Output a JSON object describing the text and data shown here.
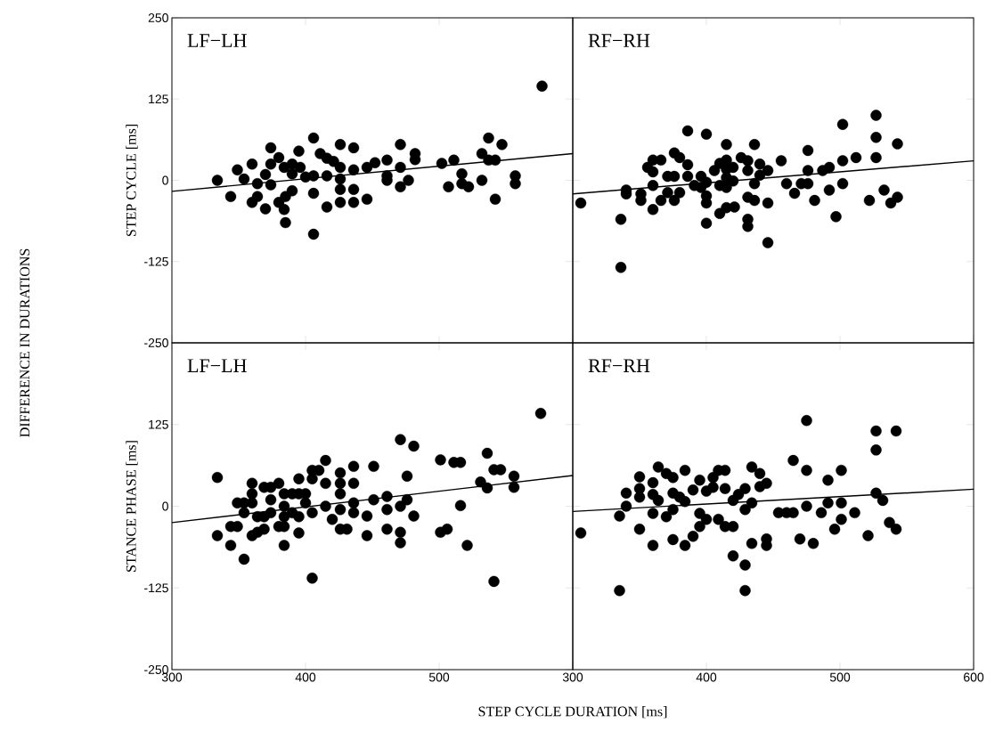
{
  "chart_data": [
    {
      "type": "scatter",
      "title": "LF−LH",
      "ylabel": "STEP CYCLE [ms]",
      "annotations": [
        "DIFFERENCE IN DURATIONS"
      ],
      "xlim": [
        300,
        600
      ],
      "ylim": [
        -250,
        250
      ],
      "xticks": [
        300,
        400,
        500,
        600
      ],
      "yticks": [
        -250,
        -125,
        0,
        125,
        250
      ],
      "tick_labels": "y",
      "series": [
        {
          "marker": "circle",
          "color": "#000000",
          "x": [
            334,
            577,
            344,
            349,
            360,
            360,
            354,
            364,
            364,
            370,
            370,
            374,
            380,
            374,
            374,
            380,
            384,
            385,
            385,
            384,
            390,
            390,
            390,
            395,
            396,
            400,
            406,
            406,
            406,
            406,
            411,
            416,
            416,
            416,
            421,
            426,
            426,
            426,
            426,
            426,
            436,
            436,
            436,
            436,
            446,
            446,
            452,
            461,
            461,
            461,
            471,
            471,
            471,
            477,
            482,
            482,
            502,
            507,
            511,
            517,
            517,
            522,
            532,
            532,
            537,
            537,
            542,
            542,
            547,
            557,
            557
          ],
          "values": [
            0,
            145,
            -25,
            16,
            25,
            -34,
            2,
            -5,
            -25,
            -44,
            9,
            50,
            35,
            25,
            -7,
            -34,
            -45,
            -65,
            -25,
            20,
            25,
            10,
            -16,
            45,
            20,
            5,
            65,
            -20,
            -83,
            7,
            41,
            34,
            7,
            -41,
            29,
            55,
            20,
            2,
            -14,
            -34,
            50,
            16,
            -14,
            -34,
            20,
            -29,
            27,
            31,
            7,
            0,
            55,
            20,
            -10,
            0,
            41,
            32,
            26,
            -10,
            31,
            10,
            -5,
            -10,
            41,
            0,
            65,
            31,
            31,
            -29,
            55,
            7,
            -5
          ]
        },
        {
          "type": "line",
          "marker": "none",
          "color": "#000000",
          "x": [
            300,
            600
          ],
          "values": [
            -17,
            41
          ]
        }
      ]
    },
    {
      "type": "scatter",
      "title": "RF−RH",
      "xlim": [
        300,
        600
      ],
      "ylim": [
        -250,
        250
      ],
      "xticks": [
        300,
        400,
        500,
        600
      ],
      "yticks": [
        -250,
        -125,
        0,
        125,
        250
      ],
      "tick_labels": false,
      "series": [
        {
          "marker": "circle",
          "color": "#000000",
          "x": [
            306,
            336,
            336,
            340,
            340,
            351,
            351,
            356,
            360,
            366,
            360,
            360,
            360,
            366,
            371,
            371,
            376,
            376,
            376,
            380,
            380,
            386,
            386,
            386,
            391,
            396,
            396,
            400,
            400,
            400,
            400,
            400,
            406,
            410,
            410,
            410,
            415,
            415,
            415,
            415,
            415,
            415,
            420,
            420,
            421,
            426,
            431,
            431,
            431,
            431,
            431,
            436,
            436,
            436,
            440,
            440,
            446,
            446,
            446,
            456,
            460,
            466,
            471,
            476,
            476,
            476,
            481,
            487,
            492,
            492,
            497,
            502,
            502,
            502,
            512,
            522,
            527,
            527,
            527,
            533,
            538,
            543,
            543
          ],
          "values": [
            -35,
            -60,
            -134,
            -15,
            -21,
            -21,
            -31,
            20,
            31,
            31,
            13,
            -8,
            -45,
            -31,
            6,
            -19,
            42,
            6,
            -31,
            35,
            -19,
            76,
            24,
            6,
            -8,
            6,
            -11,
            71,
            -3,
            -24,
            -35,
            -66,
            15,
            26,
            -8,
            -51,
            55,
            31,
            17,
            4,
            -11,
            -42,
            20,
            -1,
            -41,
            35,
            30,
            15,
            -26,
            -60,
            -71,
            55,
            -5,
            -31,
            25,
            8,
            15,
            -35,
            -96,
            30,
            -5,
            -20,
            -5,
            46,
            15,
            -5,
            -31,
            15,
            20,
            -15,
            -56,
            86,
            30,
            -5,
            35,
            -31,
            100,
            66,
            35,
            -15,
            -35,
            56,
            -26
          ]
        },
        {
          "type": "line",
          "marker": "none",
          "color": "#000000",
          "x": [
            300,
            600
          ],
          "values": [
            -21,
            30
          ]
        }
      ]
    },
    {
      "type": "scatter",
      "title": "LF−LH",
      "ylabel": "STANCE PHASE [ms]",
      "xlabel": "STEP CYCLE DURATION [ms]",
      "xlim": [
        300,
        600
      ],
      "ylim": [
        -250,
        250
      ],
      "xticks": [
        300,
        400,
        500,
        {
          "value": 600,
          "label": null
        }
      ],
      "yticks": [
        -250,
        -125,
        0,
        125,
        {
          "value": 250,
          "label": null
        }
      ],
      "series": [
        {
          "marker": "circle",
          "color": "#000000",
          "x": [
            334,
            334,
            344,
            344,
            349,
            349,
            354,
            354,
            354,
            360,
            360,
            360,
            360,
            364,
            364,
            369,
            369,
            369,
            374,
            374,
            374,
            380,
            380,
            384,
            384,
            384,
            384,
            384,
            390,
            390,
            395,
            395,
            395,
            395,
            400,
            400,
            405,
            405,
            405,
            405,
            410,
            415,
            415,
            415,
            420,
            426,
            426,
            426,
            426,
            426,
            431,
            436,
            436,
            436,
            436,
            446,
            446,
            451,
            451,
            461,
            461,
            461,
            471,
            471,
            471,
            471,
            476,
            476,
            481,
            481,
            501,
            501,
            506,
            511,
            516,
            516,
            521,
            531,
            536,
            536,
            541,
            541,
            546,
            556,
            556,
            576
          ],
          "values": [
            44,
            -45,
            -60,
            -31,
            -31,
            5,
            5,
            -10,
            -81,
            35,
            19,
            5,
            -45,
            -16,
            -40,
            29,
            -16,
            -35,
            29,
            10,
            -10,
            35,
            -31,
            19,
            0,
            -16,
            -31,
            -60,
            19,
            -10,
            42,
            19,
            -16,
            -41,
            19,
            5,
            55,
            42,
            -10,
            -110,
            55,
            70,
            35,
            0,
            -20,
            51,
            35,
            19,
            -5,
            -35,
            -35,
            61,
            35,
            5,
            -10,
            -15,
            -45,
            61,
            10,
            15,
            -5,
            -35,
            102,
            0,
            -40,
            -56,
            46,
            10,
            92,
            -15,
            71,
            -40,
            -35,
            67,
            67,
            1,
            -60,
            37,
            81,
            28,
            56,
            -115,
            56,
            46,
            29,
            142
          ]
        },
        {
          "type": "line",
          "marker": "none",
          "color": "#000000",
          "x": [
            300,
            600
          ],
          "values": [
            -25,
            47
          ]
        }
      ]
    },
    {
      "type": "scatter",
      "title": "RF−RH",
      "xlim": [
        300,
        600
      ],
      "ylim": [
        -250,
        250
      ],
      "xticks": [
        300,
        400,
        500,
        600
      ],
      "yticks": [
        -250,
        -125,
        0,
        125,
        250
      ],
      "tick_labels": "x",
      "series": [
        {
          "marker": "circle",
          "color": "#000000",
          "x": [
            306,
            335,
            335,
            340,
            340,
            350,
            350,
            350,
            350,
            360,
            360,
            360,
            360,
            364,
            364,
            370,
            370,
            375,
            375,
            375,
            375,
            380,
            384,
            384,
            384,
            390,
            390,
            395,
            395,
            395,
            400,
            400,
            405,
            405,
            409,
            409,
            414,
            414,
            414,
            420,
            420,
            420,
            424,
            429,
            429,
            429,
            429,
            434,
            434,
            434,
            440,
            440,
            445,
            445,
            445,
            454,
            460,
            465,
            465,
            470,
            475,
            475,
            475,
            480,
            486,
            491,
            491,
            496,
            501,
            501,
            501,
            511,
            521,
            527,
            527,
            527,
            532,
            537,
            542,
            542
          ],
          "values": [
            -41,
            -129,
            -15,
            0,
            20,
            45,
            27,
            14,
            -35,
            36,
            18,
            -11,
            -60,
            60,
            9,
            50,
            -16,
            44,
            20,
            -5,
            -51,
            14,
            55,
            7,
            -60,
            25,
            -46,
            40,
            -11,
            -31,
            23,
            -20,
            44,
            29,
            55,
            -20,
            55,
            27,
            -31,
            9,
            -31,
            -76,
            18,
            27,
            -5,
            -90,
            -129,
            60,
            5,
            -57,
            50,
            30,
            35,
            -50,
            -60,
            -10,
            -10,
            -10,
            70,
            -50,
            131,
            55,
            0,
            -57,
            -10,
            40,
            5,
            -35,
            55,
            5,
            -20,
            -10,
            -45,
            115,
            86,
            20,
            9,
            -25,
            115,
            -35
          ]
        },
        {
          "type": "line",
          "marker": "none",
          "color": "#000000",
          "x": [
            300,
            600
          ],
          "values": [
            -8,
            26
          ]
        }
      ]
    }
  ]
}
